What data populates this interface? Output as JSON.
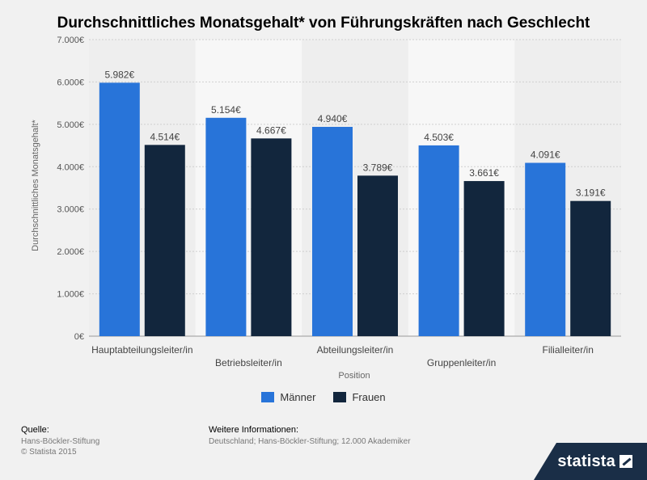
{
  "chart_data": {
    "type": "bar",
    "title": "Durchschnittliches Monatsgehalt* von Führungskräften nach Geschlecht",
    "xlabel": "Position",
    "ylabel": "Durchschnittliches Monatsgehalt*",
    "ylim": [
      0,
      7000
    ],
    "yticks": [
      "0€",
      "1.000€",
      "2.000€",
      "3.000€",
      "4.000€",
      "5.000€",
      "6.000€",
      "7.000€"
    ],
    "categories": [
      "Hauptabteilungsleiter/in",
      "Betriebsleiter/in",
      "Abteilungsleiter/in",
      "Gruppenleiter/in",
      "Filialleiter/in"
    ],
    "series": [
      {
        "name": "Männer",
        "color": "#2874d9",
        "values": [
          5982,
          5154,
          4940,
          4503,
          4091
        ],
        "labels": [
          "5.982€",
          "5.154€",
          "4.940€",
          "4.503€",
          "4.091€"
        ]
      },
      {
        "name": "Frauen",
        "color": "#12263d",
        "values": [
          4514,
          4667,
          3789,
          3661,
          3191
        ],
        "labels": [
          "4.514€",
          "4.667€",
          "3.789€",
          "3.661€",
          "3.191€"
        ]
      }
    ],
    "legend": "bottom",
    "grid": true
  },
  "footer": {
    "source_heading": "Quelle:",
    "source_lines": [
      "Hans-Böckler-Stiftung",
      "© Statista 2015"
    ],
    "info_heading": "Weitere Informationen:",
    "info_text": "Deutschland; Hans-Böckler-Stiftung; 12.000 Akademiker"
  },
  "logo": {
    "text": "statista"
  }
}
